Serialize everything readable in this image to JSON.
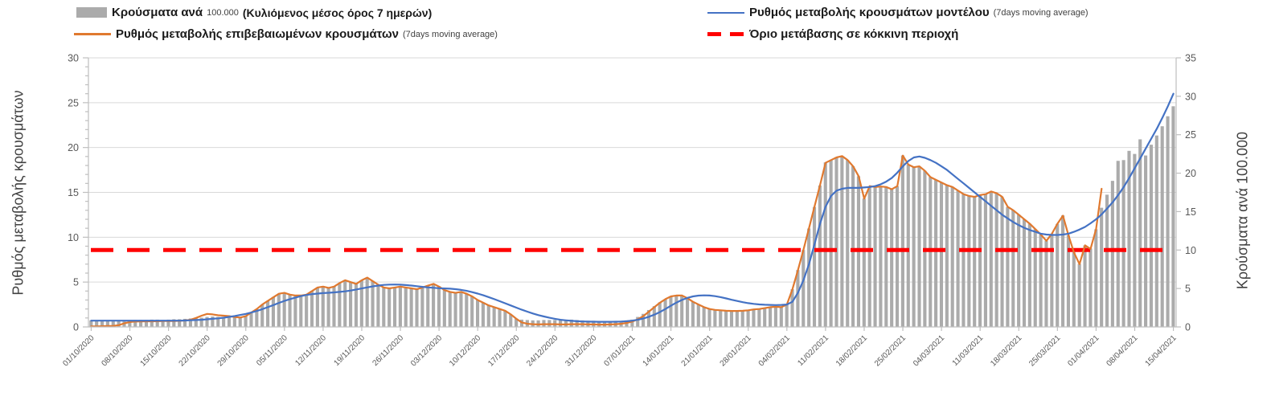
{
  "chart": {
    "colors": {
      "bars": "#ABABAB",
      "confirmed_line": "#E0792F",
      "model_line": "#4472C4",
      "threshold": "#FF0000",
      "grid": "#D9D9D9",
      "axis_line": "#BFBFBF",
      "tick_text": "#595959",
      "title_text": "#404040"
    },
    "legend": {
      "bars": {
        "label": "Κρούσματα ανά",
        "unit": "100.000",
        "paren": "(Κυλιόμενος μέσος όρος 7 ημερών)"
      },
      "confirmed": {
        "label": "Ρυθμός μεταβολής επιβεβαιωμένων κρουσμάτων",
        "paren": "(7days moving average)"
      },
      "model": {
        "label": "Ρυθμός μεταβολής κρουσμάτων μοντέλου",
        "paren": "(7days moving average)"
      },
      "threshold": {
        "label": "Όριο μετάβασης σε κόκκινη περιοχή"
      }
    },
    "left_axis": {
      "title": "Ρυθμός μεταβολής κρουσμάτων",
      "min": 0,
      "max": 30,
      "major": 5,
      "minor": 1,
      "ticks": [
        0,
        5,
        10,
        15,
        20,
        25,
        30
      ]
    },
    "right_axis": {
      "title": "Κρούσματα ανά 100.000",
      "min": 0,
      "max": 35,
      "major": 5,
      "ticks": [
        0,
        5,
        10,
        15,
        20,
        25,
        30,
        35
      ]
    }
  },
  "chart_data": {
    "type": "bar",
    "subtype": "combo daily bars (right axis) + two 7-day moving-average lines (left axis) + horizontal threshold",
    "x_is_daily": true,
    "days_per_tick": 7,
    "x_tick_labels": [
      "01/10/2020",
      "08/10/2020",
      "15/10/2020",
      "22/10/2020",
      "29/10/2020",
      "05/11/2020",
      "12/11/2020",
      "19/11/2020",
      "26/11/2020",
      "03/12/2020",
      "10/12/2020",
      "17/12/2020",
      "24/12/2020",
      "31/12/2020",
      "07/01/2021",
      "14/01/2021",
      "21/01/2021",
      "28/01/2021",
      "04/02/2021",
      "11/02/2021",
      "18/02/2021",
      "25/02/2021",
      "04/03/2021",
      "11/03/2021",
      "18/03/2021",
      "25/03/2021",
      "01/04/2021",
      "08/04/2021",
      "15/04/2021"
    ],
    "threshold": {
      "name": "Όριο μετάβασης σε κόκκινη περιοχή",
      "axis": "right",
      "value": 10
    },
    "series": [
      {
        "name": "Κρούσματα ανά 100.000 (Κυλιόμενος μέσος όρος 7 ημερών)",
        "type": "bar",
        "axis": "right",
        "values": [
          0.85,
          0.85,
          0.85,
          0.85,
          0.85,
          0.8,
          0.8,
          0.85,
          0.9,
          0.9,
          0.9,
          0.95,
          0.95,
          0.9,
          0.95,
          1.0,
          1.0,
          1.05,
          1.1,
          1.15,
          1.2,
          1.3,
          1.35,
          1.3,
          1.3,
          1.25,
          1.2,
          1.3,
          1.4,
          1.9,
          2.3,
          2.9,
          3.4,
          3.9,
          4.3,
          4.4,
          4.2,
          4.1,
          4.1,
          4.2,
          4.7,
          5.1,
          5.3,
          5.1,
          5.3,
          5.7,
          6.1,
          5.8,
          5.6,
          6.1,
          6.4,
          6.0,
          5.5,
          5.1,
          5.0,
          5.1,
          5.3,
          5.1,
          5.0,
          4.9,
          5.1,
          5.4,
          5.6,
          5.3,
          4.8,
          4.6,
          4.4,
          4.6,
          4.3,
          4.0,
          3.5,
          3.2,
          2.8,
          2.6,
          2.3,
          2.1,
          1.6,
          1.1,
          0.95,
          0.9,
          0.85,
          0.85,
          0.9,
          0.9,
          0.9,
          0.85,
          0.9,
          0.95,
          0.9,
          0.85,
          0.8,
          0.8,
          0.75,
          0.7,
          0.7,
          0.75,
          0.8,
          0.85,
          0.95,
          1.3,
          1.7,
          2.2,
          2.7,
          3.2,
          3.6,
          4.0,
          4.1,
          4.1,
          3.7,
          3.3,
          2.9,
          2.6,
          2.3,
          2.2,
          2.2,
          2.1,
          2.1,
          2.1,
          2.1,
          2.2,
          2.3,
          2.3,
          2.4,
          2.6,
          2.6,
          2.6,
          2.9,
          4.9,
          7.4,
          10.0,
          12.8,
          15.6,
          18.4,
          21.4,
          21.7,
          22.1,
          22.2,
          21.7,
          20.9,
          19.6,
          16.7,
          18.3,
          18.2,
          18.3,
          18.2,
          17.9,
          18.3,
          22.3,
          21.1,
          20.8,
          20.9,
          20.3,
          19.5,
          19.1,
          18.8,
          18.4,
          18.2,
          17.7,
          17.3,
          17.0,
          16.9,
          17.2,
          17.3,
          17.6,
          17.4,
          16.9,
          15.6,
          15.2,
          14.6,
          14.0,
          13.4,
          12.7,
          12.0,
          11.2,
          12.1,
          13.4,
          14.5,
          11.9,
          9.7,
          8.2,
          10.6,
          10.2,
          12.7,
          15.5,
          17.2,
          19.0,
          21.6,
          21.7,
          22.9,
          22.5,
          24.4,
          22.3,
          23.7,
          24.9,
          26.1,
          27.4,
          28.7
        ]
      },
      {
        "name": "Ρυθμός μεταβολής επιβεβαιωμένων κρουσμάτων (7days moving average)",
        "type": "line",
        "axis": "left",
        "values": [
          0.05,
          0.06,
          0.08,
          0.1,
          0.12,
          0.2,
          0.4,
          0.55,
          0.6,
          0.62,
          0.63,
          0.63,
          0.64,
          0.65,
          0.65,
          0.66,
          0.68,
          0.72,
          0.8,
          1.0,
          1.25,
          1.45,
          1.4,
          1.3,
          1.25,
          1.2,
          1.1,
          1.05,
          1.2,
          1.6,
          2.0,
          2.5,
          2.9,
          3.3,
          3.7,
          3.8,
          3.6,
          3.5,
          3.5,
          3.6,
          4.0,
          4.4,
          4.5,
          4.35,
          4.5,
          4.9,
          5.2,
          5.0,
          4.8,
          5.2,
          5.5,
          5.1,
          4.7,
          4.4,
          4.3,
          4.4,
          4.5,
          4.4,
          4.3,
          4.2,
          4.4,
          4.6,
          4.8,
          4.5,
          4.1,
          3.9,
          3.8,
          3.9,
          3.7,
          3.4,
          3.0,
          2.7,
          2.4,
          2.2,
          2.0,
          1.8,
          1.4,
          0.9,
          0.5,
          0.35,
          0.3,
          0.28,
          0.3,
          0.3,
          0.3,
          0.28,
          0.28,
          0.3,
          0.3,
          0.3,
          0.28,
          0.28,
          0.26,
          0.26,
          0.28,
          0.3,
          0.35,
          0.45,
          0.6,
          0.85,
          1.2,
          1.7,
          2.2,
          2.7,
          3.1,
          3.4,
          3.5,
          3.5,
          3.2,
          2.8,
          2.5,
          2.2,
          2.0,
          1.9,
          1.85,
          1.8,
          1.78,
          1.78,
          1.8,
          1.85,
          1.95,
          2.0,
          2.1,
          2.2,
          2.25,
          2.2,
          2.5,
          4.2,
          6.3,
          8.6,
          11.0,
          13.4,
          15.8,
          18.3,
          18.6,
          18.9,
          19.05,
          18.6,
          17.9,
          16.8,
          14.3,
          15.7,
          15.6,
          15.65,
          15.6,
          15.35,
          15.7,
          19.1,
          18.1,
          17.8,
          17.9,
          17.4,
          16.7,
          16.4,
          16.1,
          15.8,
          15.6,
          15.2,
          14.8,
          14.6,
          14.5,
          14.7,
          14.8,
          15.1,
          14.9,
          14.5,
          13.4,
          13.0,
          12.5,
          12.0,
          11.5,
          10.9,
          10.3,
          9.6,
          10.4,
          11.5,
          12.4,
          10.2,
          8.3,
          7.0,
          9.1,
          8.7,
          10.9,
          15.4,
          null,
          null,
          null,
          null,
          null,
          null,
          null,
          null,
          null,
          null,
          null,
          null,
          null
        ]
      },
      {
        "name": "Ρυθμός μεταβολής κρουσμάτων μοντέλου (7days moving average)",
        "type": "line",
        "axis": "left",
        "values": [
          0.7,
          0.7,
          0.7,
          0.7,
          0.7,
          0.7,
          0.7,
          0.7,
          0.7,
          0.7,
          0.7,
          0.7,
          0.7,
          0.7,
          0.7,
          0.7,
          0.7,
          0.72,
          0.74,
          0.77,
          0.8,
          0.85,
          0.9,
          0.96,
          1.03,
          1.12,
          1.22,
          1.33,
          1.45,
          1.6,
          1.78,
          1.98,
          2.2,
          2.44,
          2.68,
          2.9,
          3.1,
          3.28,
          3.44,
          3.56,
          3.65,
          3.72,
          3.77,
          3.81,
          3.85,
          3.9,
          3.97,
          4.06,
          4.17,
          4.29,
          4.41,
          4.52,
          4.61,
          4.68,
          4.72,
          4.73,
          4.71,
          4.67,
          4.61,
          4.54,
          4.47,
          4.41,
          4.36,
          4.32,
          4.29,
          4.26,
          4.21,
          4.13,
          4.02,
          3.88,
          3.72,
          3.53,
          3.32,
          3.1,
          2.87,
          2.63,
          2.39,
          2.15,
          1.92,
          1.7,
          1.5,
          1.32,
          1.16,
          1.02,
          0.9,
          0.8,
          0.73,
          0.68,
          0.64,
          0.61,
          0.59,
          0.58,
          0.57,
          0.57,
          0.57,
          0.58,
          0.6,
          0.64,
          0.7,
          0.8,
          0.94,
          1.13,
          1.37,
          1.66,
          2.0,
          2.36,
          2.71,
          3.01,
          3.24,
          3.4,
          3.49,
          3.52,
          3.5,
          3.43,
          3.32,
          3.18,
          3.03,
          2.89,
          2.76,
          2.65,
          2.57,
          2.51,
          2.47,
          2.45,
          2.44,
          2.45,
          2.5,
          2.8,
          3.8,
          5.2,
          7.0,
          9.2,
          11.5,
          13.4,
          14.6,
          15.2,
          15.4,
          15.5,
          15.5,
          15.5,
          15.55,
          15.6,
          15.7,
          15.9,
          16.2,
          16.6,
          17.2,
          17.9,
          18.5,
          18.9,
          19.0,
          18.85,
          18.6,
          18.3,
          17.9,
          17.5,
          17.0,
          16.5,
          16.0,
          15.5,
          15.0,
          14.5,
          14.0,
          13.5,
          13.0,
          12.5,
          12.1,
          11.7,
          11.35,
          11.05,
          10.8,
          10.6,
          10.4,
          10.3,
          10.25,
          10.25,
          10.3,
          10.4,
          10.6,
          10.85,
          11.15,
          11.55,
          12.0,
          12.55,
          13.2,
          13.9,
          14.7,
          15.6,
          16.6,
          17.7,
          18.8,
          19.9,
          21.0,
          22.1,
          23.3,
          24.6,
          26.0
        ]
      }
    ],
    "left_axis_range": [
      0,
      30
    ],
    "right_axis_range": [
      0,
      35
    ],
    "grid": "horizontal major gridlines"
  }
}
